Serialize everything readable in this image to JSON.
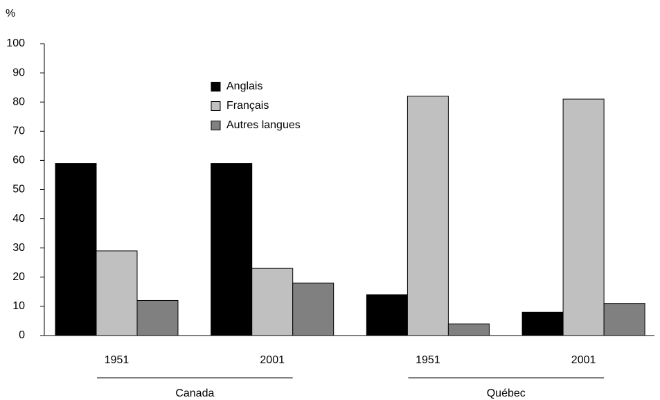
{
  "chart_data": {
    "type": "bar",
    "y_label": "%",
    "categories": [
      "1951",
      "2001",
      "1951",
      "2001"
    ],
    "groups": [
      "Canada",
      "Québec"
    ],
    "series": [
      {
        "name": "Anglais",
        "color": "#000000",
        "values": [
          59,
          59,
          14,
          8
        ]
      },
      {
        "name": "Français",
        "color": "#c0c0c0",
        "values": [
          29,
          23,
          82,
          81
        ]
      },
      {
        "name": "Autres langues",
        "color": "#808080",
        "values": [
          12,
          18,
          4,
          11
        ]
      }
    ],
    "ylim": [
      0,
      100
    ],
    "yticks": [
      0,
      10,
      20,
      30,
      40,
      50,
      60,
      70,
      80,
      90,
      100
    ],
    "legend": "upper center"
  }
}
